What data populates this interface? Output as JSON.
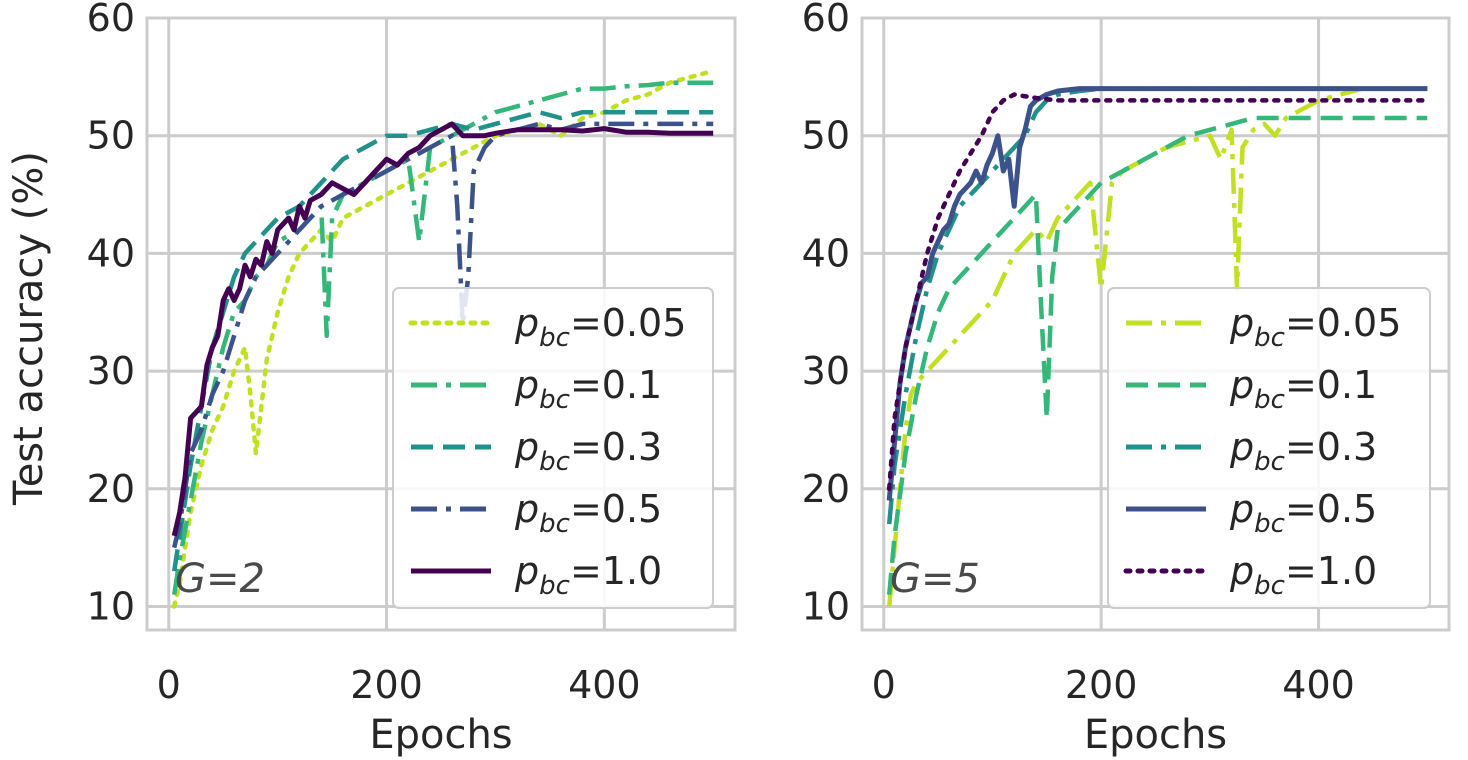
{
  "chart_data": [
    {
      "type": "line",
      "panel": "left",
      "annotation": "G=2",
      "xlabel": "Epochs",
      "ylabel": "Test accuracy (%)",
      "xlim": [
        -20,
        520
      ],
      "ylim": [
        8,
        60
      ],
      "xticks": [
        0,
        200,
        400
      ],
      "yticks": [
        10,
        20,
        30,
        40,
        50,
        60
      ],
      "grid": true,
      "legend_location": "lower-right",
      "series": [
        {
          "name": "0.05",
          "label_prefix": "p",
          "label_sub": "bc",
          "label_eq": "=",
          "color": "#c2df23",
          "dash": "dotted",
          "x": [
            5,
            10,
            20,
            30,
            40,
            50,
            60,
            70,
            75,
            80,
            90,
            100,
            110,
            120,
            140,
            150,
            160,
            180,
            200,
            220,
            240,
            260,
            280,
            300,
            320,
            340,
            360,
            380,
            400,
            420,
            440,
            460,
            480,
            500
          ],
          "y": [
            10,
            12,
            18,
            22,
            25,
            27,
            30,
            32,
            28,
            23,
            31,
            35,
            38,
            40,
            42,
            41,
            43,
            44,
            45,
            46,
            47,
            48,
            49,
            50,
            50.5,
            51,
            50,
            51.5,
            52,
            53,
            53.5,
            54.5,
            55,
            55.5
          ]
        },
        {
          "name": "0.1",
          "label_prefix": "p",
          "label_sub": "bc",
          "label_eq": "=",
          "color": "#35b779",
          "dash": "dashdot",
          "x": [
            5,
            10,
            20,
            30,
            40,
            50,
            60,
            70,
            80,
            90,
            100,
            120,
            140,
            145,
            150,
            160,
            180,
            200,
            220,
            230,
            240,
            260,
            280,
            300,
            320,
            340,
            360,
            380,
            400,
            420,
            440,
            460,
            480,
            500
          ],
          "y": [
            11,
            14,
            19,
            24,
            28,
            32,
            35,
            36,
            38,
            39,
            41,
            42,
            44,
            33,
            43,
            45,
            46,
            47,
            48,
            41,
            49,
            50,
            51,
            52,
            52.5,
            53,
            53.5,
            54,
            54,
            54.2,
            54.3,
            54.5,
            54.5,
            54.5
          ]
        },
        {
          "name": "0.3",
          "label_prefix": "p",
          "label_sub": "bc",
          "label_eq": "=",
          "color": "#21918c",
          "dash": "dashed",
          "x": [
            5,
            10,
            20,
            30,
            40,
            50,
            60,
            70,
            80,
            90,
            100,
            120,
            140,
            160,
            180,
            200,
            220,
            240,
            260,
            280,
            300,
            320,
            340,
            360,
            380,
            400,
            420,
            440,
            460,
            480,
            500
          ],
          "y": [
            13,
            16,
            22,
            27,
            32,
            35,
            38,
            40,
            41,
            42,
            43,
            44,
            46,
            48,
            49,
            50,
            50,
            50.5,
            51,
            50.5,
            51,
            51.5,
            52,
            51.5,
            52,
            52,
            52,
            52,
            52,
            52,
            52
          ]
        },
        {
          "name": "0.5",
          "label_prefix": "p",
          "label_sub": "bc",
          "label_eq": "=",
          "color": "#3b528b",
          "dash": "dashdot",
          "x": [
            5,
            10,
            20,
            30,
            40,
            50,
            60,
            70,
            80,
            90,
            100,
            110,
            120,
            130,
            140,
            160,
            180,
            200,
            220,
            240,
            260,
            265,
            270,
            275,
            280,
            290,
            300,
            320,
            340,
            360,
            380,
            400,
            420,
            440,
            460,
            480,
            500
          ],
          "y": [
            15,
            17,
            23,
            25,
            28,
            30,
            33,
            36,
            38,
            39,
            40,
            41,
            42,
            43,
            44,
            45,
            46,
            47,
            48,
            49,
            50,
            44,
            34,
            38,
            47,
            49,
            50,
            50.5,
            51,
            50.5,
            51,
            51,
            51,
            51,
            51,
            51,
            51
          ]
        },
        {
          "name": "1.0",
          "label_prefix": "p",
          "label_sub": "bc",
          "label_eq": "=",
          "color": "#440154",
          "dash": "solid",
          "x": [
            5,
            10,
            15,
            20,
            25,
            30,
            35,
            40,
            45,
            50,
            55,
            60,
            65,
            70,
            75,
            80,
            85,
            90,
            95,
            100,
            105,
            110,
            115,
            120,
            125,
            130,
            140,
            150,
            160,
            170,
            180,
            190,
            200,
            210,
            220,
            230,
            240,
            250,
            260,
            270,
            280,
            290,
            300,
            320,
            340,
            360,
            380,
            400,
            420,
            440,
            460,
            480,
            500
          ],
          "y": [
            16,
            18,
            21,
            26,
            26.5,
            27,
            30.5,
            32,
            33,
            36,
            37,
            36,
            37,
            39,
            38,
            39.5,
            39,
            41,
            40,
            42,
            42.5,
            43,
            42,
            44,
            43,
            44.5,
            45,
            46,
            45.5,
            45,
            46,
            47,
            48,
            47.5,
            48.5,
            49,
            50,
            50.5,
            51,
            50,
            50,
            50,
            50.2,
            50.5,
            50.5,
            50.5,
            50.4,
            50.6,
            50.3,
            50.3,
            50.2,
            50.2,
            50.2
          ]
        }
      ]
    },
    {
      "type": "line",
      "panel": "right",
      "annotation": "G=5",
      "xlabel": "Epochs",
      "ylabel": "",
      "xlim": [
        -20,
        520
      ],
      "ylim": [
        8,
        60
      ],
      "xticks": [
        0,
        200,
        400
      ],
      "yticks": [
        10,
        20,
        30,
        40,
        50,
        60
      ],
      "grid": true,
      "legend_location": "lower-right",
      "series": [
        {
          "name": "0.05",
          "label_prefix": "p",
          "label_sub": "bc",
          "label_eq": "=",
          "color": "#c2df23",
          "dash": "dashdot",
          "x": [
            5,
            10,
            15,
            20,
            25,
            30,
            40,
            50,
            60,
            70,
            80,
            90,
            100,
            110,
            120,
            130,
            140,
            150,
            160,
            170,
            180,
            190,
            200,
            210,
            220,
            240,
            260,
            280,
            300,
            310,
            320,
            325,
            330,
            340,
            350,
            360,
            370,
            380,
            400,
            420,
            440,
            460,
            480,
            500
          ],
          "y": [
            10,
            15,
            20,
            25,
            28,
            29,
            30,
            31,
            32,
            33,
            34,
            35,
            36,
            38,
            40,
            41,
            42,
            41,
            43,
            44,
            45,
            46,
            37,
            46,
            47,
            48,
            49,
            49.5,
            50,
            48,
            50.5,
            37,
            49,
            50.5,
            51,
            50,
            51.5,
            52,
            53,
            53.5,
            54,
            54,
            54,
            54
          ]
        },
        {
          "name": "0.1",
          "label_prefix": "p",
          "label_sub": "bc",
          "label_eq": "=",
          "color": "#35b779",
          "dash": "dashed",
          "x": [
            5,
            10,
            20,
            30,
            40,
            50,
            60,
            70,
            80,
            90,
            100,
            110,
            120,
            130,
            140,
            145,
            150,
            155,
            160,
            170,
            180,
            190,
            200,
            220,
            240,
            260,
            280,
            300,
            320,
            340,
            360,
            380,
            400,
            420,
            440,
            460,
            480,
            500
          ],
          "y": [
            11,
            16,
            23,
            28,
            32,
            35,
            37,
            38,
            39,
            40,
            41,
            42,
            43,
            44,
            45,
            35,
            26,
            38,
            42,
            43,
            44,
            45,
            46,
            47,
            48,
            49,
            50,
            50.5,
            51,
            51.5,
            51.5,
            51.5,
            51.5,
            51.5,
            51.5,
            51.5,
            51.5,
            51.5
          ]
        },
        {
          "name": "0.3",
          "label_prefix": "p",
          "label_sub": "bc",
          "label_eq": "=",
          "color": "#21918c",
          "dash": "dashdot",
          "x": [
            5,
            10,
            20,
            30,
            40,
            50,
            60,
            70,
            80,
            90,
            100,
            110,
            120,
            130,
            140,
            150,
            160,
            180,
            200,
            220,
            240,
            260,
            280,
            300,
            320,
            340,
            360,
            380,
            400,
            420,
            440,
            460,
            480,
            500
          ],
          "y": [
            17,
            22,
            28,
            33,
            37,
            40,
            42,
            44,
            45,
            46,
            47,
            48,
            49,
            50,
            52,
            53,
            53.5,
            53.8,
            54,
            54,
            54,
            54,
            54,
            54,
            54,
            54,
            54,
            54,
            54,
            54,
            54,
            54,
            54,
            54
          ]
        },
        {
          "name": "0.5",
          "label_prefix": "p",
          "label_sub": "bc",
          "label_eq": "=",
          "color": "#3b528b",
          "dash": "solid",
          "x": [
            5,
            10,
            15,
            20,
            25,
            30,
            35,
            40,
            45,
            50,
            55,
            60,
            65,
            70,
            75,
            80,
            85,
            90,
            95,
            100,
            105,
            110,
            115,
            120,
            125,
            130,
            135,
            140,
            150,
            160,
            180,
            200,
            220,
            240,
            260,
            280,
            300,
            320,
            340,
            360,
            380,
            400,
            420,
            440,
            460,
            480,
            500
          ],
          "y": [
            19,
            24,
            29,
            32,
            34,
            36,
            37.5,
            38,
            40,
            41,
            42,
            42.5,
            44,
            45,
            45.5,
            46,
            47,
            46,
            47.5,
            48.5,
            50,
            47,
            48,
            44,
            49,
            50.5,
            52.5,
            53,
            53.5,
            53.8,
            54,
            54,
            54,
            54,
            54,
            54,
            54,
            54,
            54,
            54,
            54,
            54,
            54,
            54,
            54,
            54,
            54
          ]
        },
        {
          "name": "1.0",
          "label_prefix": "p",
          "label_sub": "bc",
          "label_eq": "=",
          "color": "#440154",
          "dash": "dotted",
          "x": [
            5,
            10,
            20,
            30,
            40,
            50,
            60,
            70,
            80,
            90,
            100,
            110,
            120,
            140,
            160,
            180,
            200,
            220,
            240,
            260,
            280,
            300,
            320,
            340,
            360,
            380,
            400,
            420,
            440,
            460,
            480,
            500
          ],
          "y": [
            20,
            26,
            32,
            36,
            40,
            43,
            45,
            47,
            48.5,
            50,
            52,
            53,
            53.5,
            53.2,
            53,
            53,
            53,
            53,
            53,
            53,
            53,
            53,
            53,
            53,
            53,
            53,
            53,
            53,
            53,
            53,
            53,
            53
          ]
        }
      ]
    }
  ]
}
